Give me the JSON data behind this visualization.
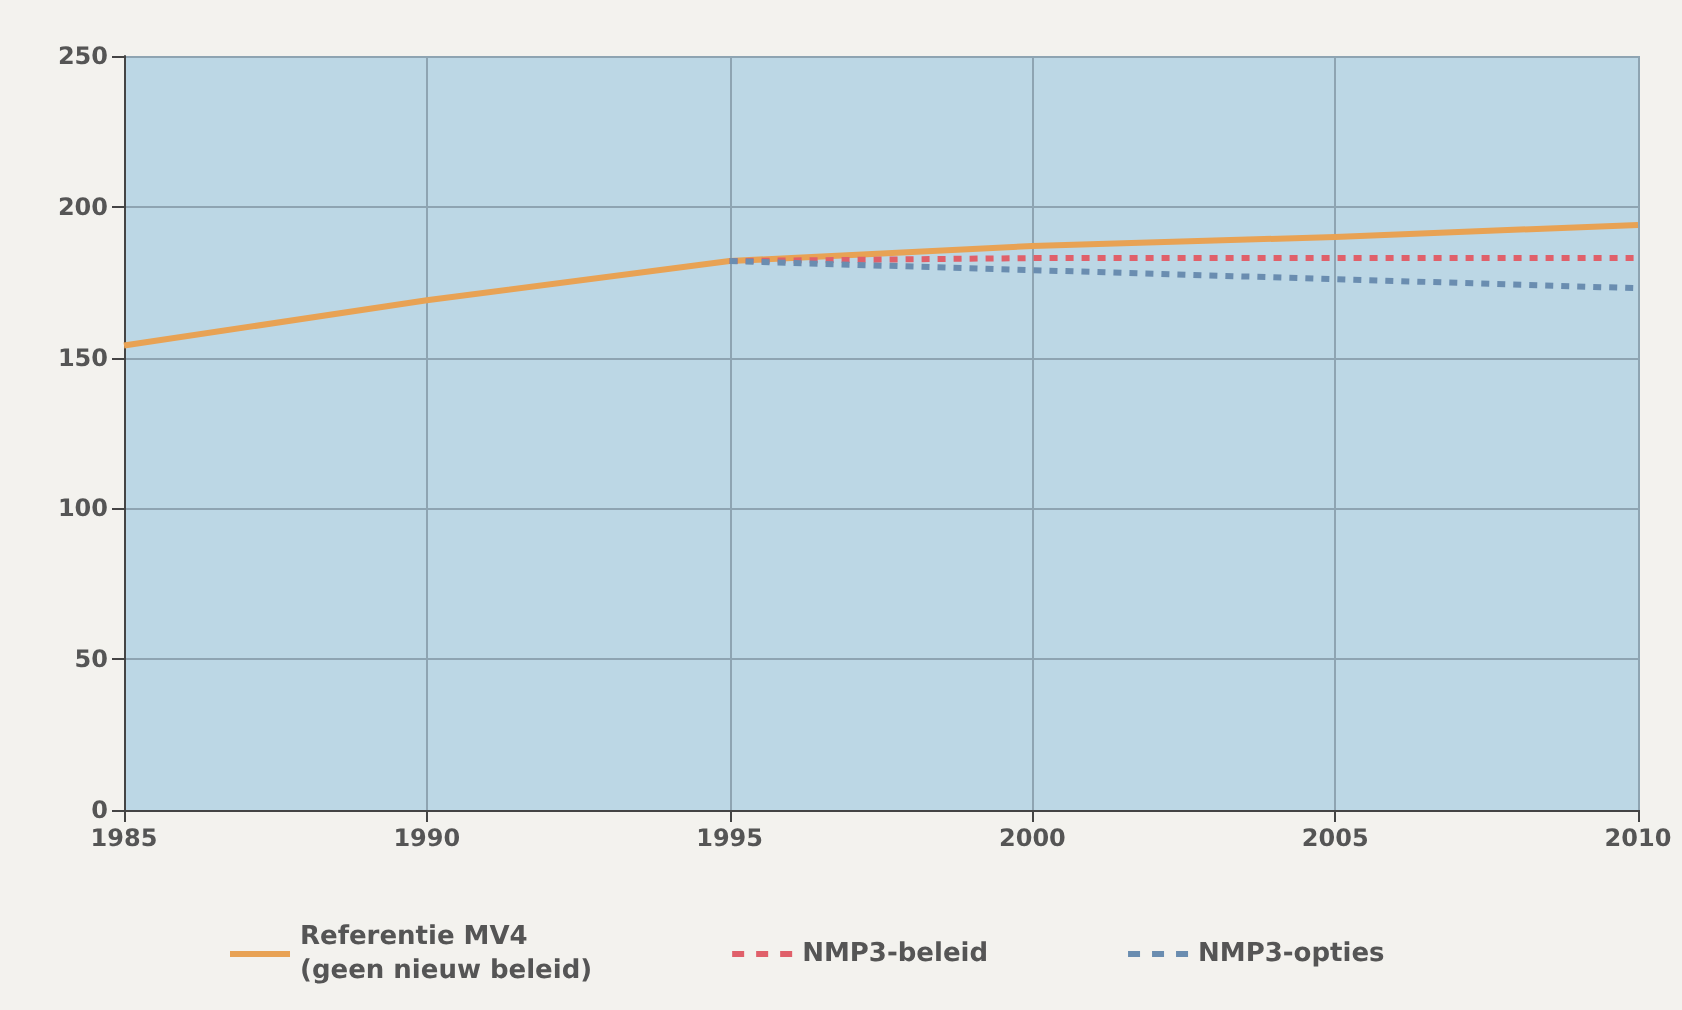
{
  "chart_data": {
    "type": "line",
    "x": [
      1985,
      1990,
      1995,
      2000,
      2005,
      2010
    ],
    "series": [
      {
        "name": "Referentie MV4\n(geen nieuw beleid)",
        "color": "#e8a254",
        "line_style": "solid",
        "values": [
          154,
          169,
          182,
          187,
          190,
          194
        ]
      },
      {
        "name": "NMP3-beleid",
        "color": "#e0606a",
        "line_style": "dashed",
        "values": [
          null,
          null,
          182,
          183,
          183,
          183
        ]
      },
      {
        "name": "NMP3-opties",
        "color": "#6a8db0",
        "line_style": "dashed",
        "values": [
          null,
          null,
          182,
          179,
          176,
          173
        ]
      }
    ],
    "xlim": [
      1985,
      2010
    ],
    "xticks": [
      1985,
      1990,
      1995,
      2000,
      2005,
      2010
    ],
    "ylim": [
      0,
      250
    ],
    "yticks": [
      0,
      50,
      100,
      150,
      200,
      250
    ],
    "grid": true,
    "legend": "bottom",
    "marker": "none"
  }
}
